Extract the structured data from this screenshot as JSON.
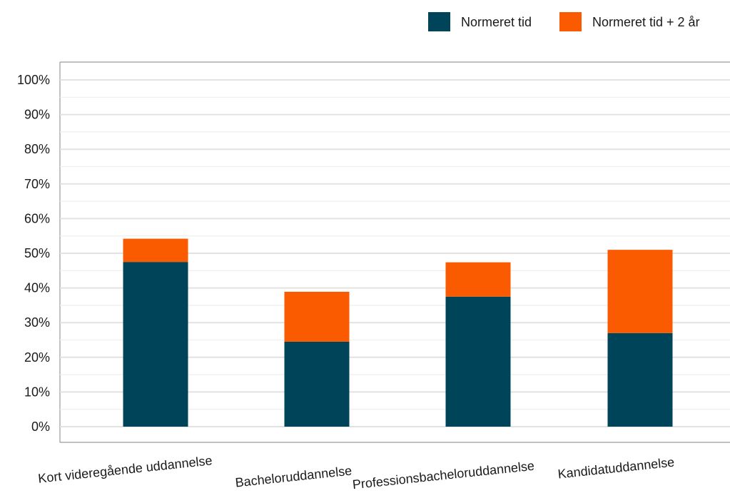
{
  "chart_data": {
    "type": "bar",
    "stacked": true,
    "categories": [
      "Kort videregående uddannelse",
      "Bacheloruddannelse",
      "Professionsbacheloruddannelse",
      "Kandidatuddannelse"
    ],
    "series": [
      {
        "name": "Normeret tid",
        "color": "#00445a",
        "values": [
          47.5,
          24.5,
          37.5,
          27.0
        ]
      },
      {
        "name": "Normeret tid + 2 år",
        "color": "#fa5a00",
        "values": [
          6.7,
          14.4,
          9.9,
          24.0
        ]
      }
    ],
    "title": "",
    "xlabel": "",
    "ylabel": "",
    "ylim": [
      0,
      100
    ],
    "yticks": [
      "0%",
      "10%",
      "20%",
      "30%",
      "40%",
      "50%",
      "60%",
      "70%",
      "80%",
      "90%",
      "100%"
    ],
    "grid": true,
    "legend_position": "top-right"
  }
}
